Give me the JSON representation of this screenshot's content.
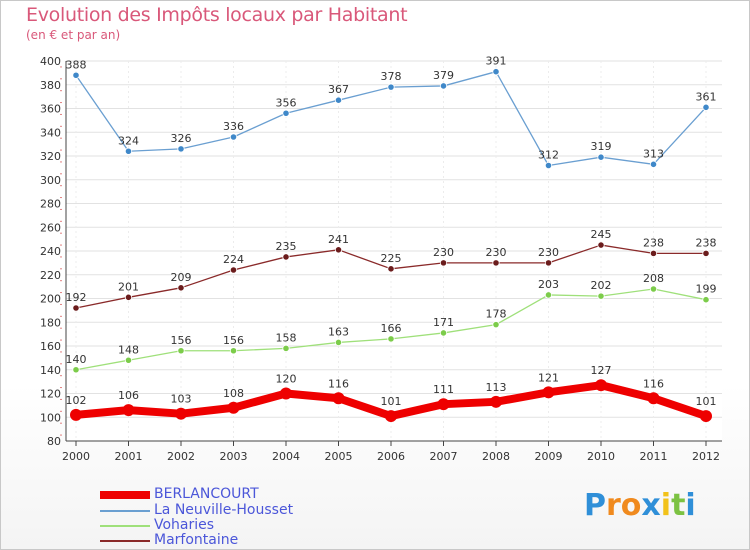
{
  "header": {
    "title": "Evolution des Impôts locaux par Habitant",
    "subtitle": "(en € et par an)"
  },
  "chart_data": {
    "type": "line",
    "title": "Evolution des Impôts locaux par Habitant",
    "subtitle": "(en € et par an)",
    "xlabel": "",
    "ylabel": "",
    "ylim": [
      80,
      400
    ],
    "yticks": [
      80,
      100,
      120,
      140,
      160,
      180,
      200,
      220,
      240,
      260,
      280,
      300,
      320,
      340,
      360,
      380,
      400
    ],
    "grid": true,
    "legend_position": "bottom-left",
    "x": [
      "2000",
      "2001",
      "2002",
      "2003",
      "2004",
      "2005",
      "2006",
      "2007",
      "2008",
      "2009",
      "2010",
      "2011",
      "2012"
    ],
    "series": [
      {
        "name": "La Neuville-Housset",
        "color": "#6a9fd1",
        "marker": "#3f88c9",
        "values": [
          388,
          324,
          326,
          336,
          356,
          367,
          378,
          379,
          391,
          312,
          319,
          313,
          361
        ]
      },
      {
        "name": "Marfontaine",
        "color": "#8a2a2a",
        "marker": "#6b1c1c",
        "values": [
          192,
          201,
          209,
          224,
          235,
          241,
          225,
          230,
          230,
          230,
          245,
          238,
          238
        ]
      },
      {
        "name": "Voharies",
        "color": "#9fe07a",
        "marker": "#7ccc4a",
        "values": [
          140,
          148,
          156,
          156,
          158,
          163,
          166,
          171,
          178,
          203,
          202,
          208,
          199
        ]
      },
      {
        "name": "BERLANCOURT",
        "color": "#ee0000",
        "marker": "#ee0000",
        "values": [
          102,
          106,
          103,
          108,
          120,
          116,
          101,
          111,
          113,
          121,
          127,
          116,
          101
        ]
      }
    ]
  },
  "legend": {
    "items": [
      {
        "label": "BERLANCOURT",
        "color": "#ee0000"
      },
      {
        "label": "La Neuville-Housset",
        "color": "#6a9fd1"
      },
      {
        "label": "Voharies",
        "color": "#9fe07a"
      },
      {
        "label": "Marfontaine",
        "color": "#8a2a2a"
      }
    ]
  },
  "logo": {
    "letters": [
      "P",
      "r",
      "o",
      "x",
      "i",
      "t",
      "i"
    ],
    "colors": [
      "#2f8fd8",
      "#f08a1e",
      "#f08a1e",
      "#2f8fd8",
      "#f2c21a",
      "#7cc242",
      "#2f8fd8"
    ]
  }
}
